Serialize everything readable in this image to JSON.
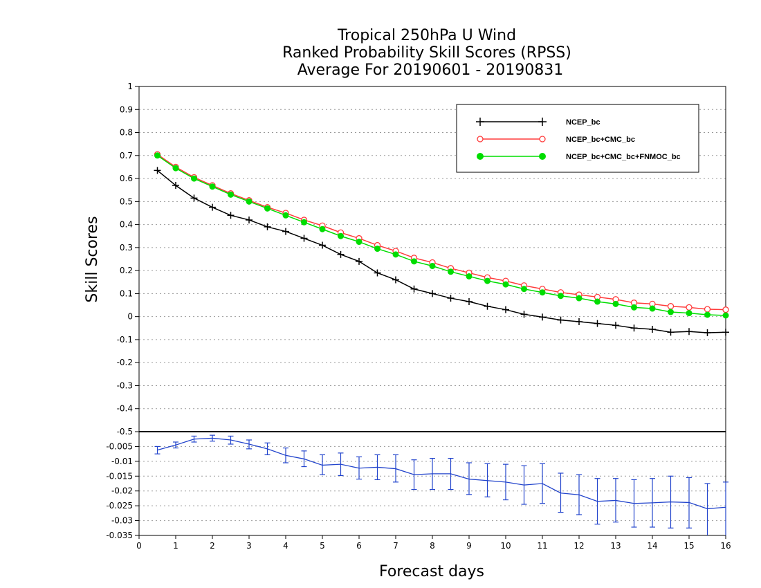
{
  "chart_data": {
    "title": [
      "Tropical 250hPa U Wind",
      "Ranked Probability Skill Scores (RPSS)",
      "Average For 20190601 - 20190831"
    ],
    "xlabel": "Forecast days",
    "ylabel": "Skill Scores",
    "top_panel": {
      "type": "line",
      "ylim": [
        -0.5,
        1
      ],
      "yticks": [
        1,
        0.9,
        0.8,
        0.7,
        0.6,
        0.5,
        0.4,
        0.3,
        0.2,
        0.1,
        0,
        -0.1,
        -0.2,
        -0.3,
        -0.4,
        -0.5
      ],
      "grid": true,
      "legend_position": "top-right",
      "x": [
        0.5,
        1,
        1.5,
        2,
        2.5,
        3,
        3.5,
        4,
        4.5,
        5,
        5.5,
        6,
        6.5,
        7,
        7.5,
        8,
        8.5,
        9,
        9.5,
        10,
        10.5,
        11,
        11.5,
        12,
        12.5,
        13,
        13.5,
        14,
        14.5,
        15,
        15.5,
        16
      ],
      "series": [
        {
          "name": "NCEP_bc",
          "color": "#000000",
          "marker": "plus",
          "values": [
            0.635,
            0.57,
            0.515,
            0.475,
            0.44,
            0.42,
            0.39,
            0.37,
            0.34,
            0.31,
            0.27,
            0.24,
            0.19,
            0.16,
            0.12,
            0.1,
            0.08,
            0.065,
            0.045,
            0.03,
            0.01,
            -0.002,
            -0.015,
            -0.022,
            -0.03,
            -0.038,
            -0.05,
            -0.055,
            -0.068,
            -0.065,
            -0.07,
            -0.068
          ]
        },
        {
          "name": "NCEP_bc+CMC_bc",
          "color": "#ff3b3b",
          "marker": "open-circle",
          "values": [
            0.705,
            0.65,
            0.605,
            0.57,
            0.535,
            0.505,
            0.475,
            0.45,
            0.42,
            0.395,
            0.365,
            0.34,
            0.31,
            0.285,
            0.255,
            0.235,
            0.21,
            0.19,
            0.17,
            0.155,
            0.135,
            0.12,
            0.105,
            0.095,
            0.085,
            0.075,
            0.06,
            0.055,
            0.045,
            0.04,
            0.032,
            0.03
          ]
        },
        {
          "name": "NCEP_bc+CMC_bc+FNMOC_bc",
          "color": "#00dd00",
          "marker": "filled-circle",
          "values": [
            0.7,
            0.645,
            0.6,
            0.565,
            0.53,
            0.5,
            0.47,
            0.44,
            0.41,
            0.38,
            0.35,
            0.325,
            0.295,
            0.27,
            0.24,
            0.22,
            0.195,
            0.175,
            0.155,
            0.14,
            0.12,
            0.105,
            0.09,
            0.08,
            0.065,
            0.055,
            0.04,
            0.035,
            0.02,
            0.015,
            0.008,
            0.005
          ]
        }
      ]
    },
    "bottom_panel": {
      "type": "line",
      "color": "#2244cc",
      "ylim": [
        -0.035,
        0
      ],
      "yticks": [
        -0.005,
        -0.01,
        -0.015,
        -0.02,
        -0.025,
        -0.03,
        -0.035
      ],
      "x": [
        0.5,
        1,
        1.5,
        2,
        2.5,
        3,
        3.5,
        4,
        4.5,
        5,
        5.5,
        6,
        6.5,
        7,
        7.5,
        8,
        8.5,
        9,
        9.5,
        10,
        10.5,
        11,
        11.5,
        12,
        12.5,
        13,
        13.5,
        14,
        14.5,
        15,
        15.5,
        16
      ],
      "values": [
        -0.0062,
        -0.0045,
        -0.0025,
        -0.0022,
        -0.0028,
        -0.0042,
        -0.0058,
        -0.008,
        -0.0092,
        -0.0113,
        -0.011,
        -0.0123,
        -0.012,
        -0.0125,
        -0.0145,
        -0.0142,
        -0.0142,
        -0.016,
        -0.0165,
        -0.017,
        -0.018,
        -0.0175,
        -0.0207,
        -0.0213,
        -0.0235,
        -0.0232,
        -0.0242,
        -0.024,
        -0.0237,
        -0.0239,
        -0.026,
        -0.0255
      ],
      "err_low": [
        -0.0075,
        -0.0055,
        -0.0035,
        -0.0032,
        -0.0042,
        -0.0058,
        -0.0078,
        -0.0105,
        -0.0118,
        -0.0145,
        -0.0148,
        -0.016,
        -0.0162,
        -0.017,
        -0.0195,
        -0.0195,
        -0.0195,
        -0.0212,
        -0.022,
        -0.023,
        -0.0245,
        -0.0242,
        -0.0272,
        -0.028,
        -0.0312,
        -0.0305,
        -0.0322,
        -0.0322,
        -0.0325,
        -0.0325,
        -0.035,
        -0.035
      ],
      "err_high": [
        -0.005,
        -0.0035,
        -0.0015,
        -0.0012,
        -0.0015,
        -0.0028,
        -0.0038,
        -0.0055,
        -0.0065,
        -0.0078,
        -0.0072,
        -0.0085,
        -0.0078,
        -0.0078,
        -0.0095,
        -0.009,
        -0.009,
        -0.0105,
        -0.0108,
        -0.011,
        -0.0115,
        -0.0108,
        -0.014,
        -0.0145,
        -0.0158,
        -0.0158,
        -0.0162,
        -0.0158,
        -0.015,
        -0.0155,
        -0.0175,
        -0.017
      ]
    },
    "xlim": [
      0,
      16
    ],
    "xticks": [
      0,
      1,
      2,
      3,
      4,
      5,
      6,
      7,
      8,
      9,
      10,
      11,
      12,
      13,
      14,
      15,
      16
    ]
  }
}
